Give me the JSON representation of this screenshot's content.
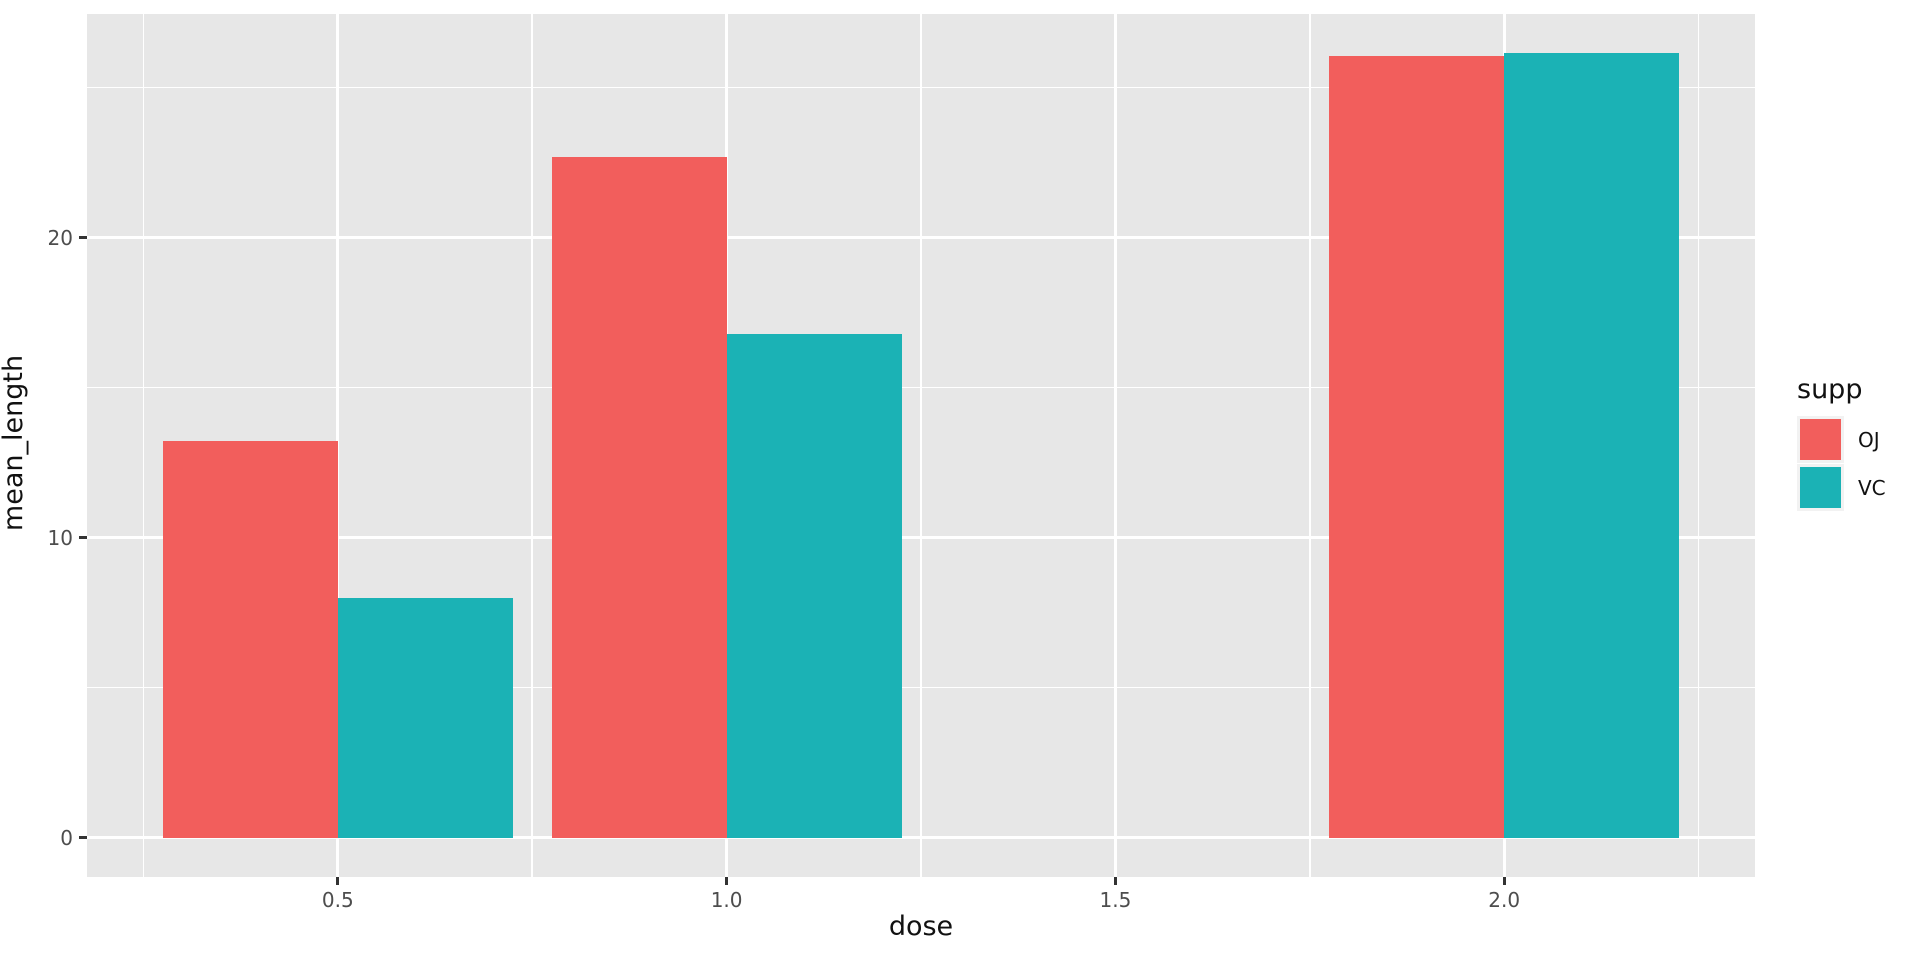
{
  "figure": {
    "theme": {
      "background": "#FFFFFF",
      "panel_bg": "#E7E7E7",
      "grid_color": "#FFFFFF",
      "tick_mark_color": "#333333",
      "tick_label_color": "#4D4D4D",
      "axis_title_color": "#111111",
      "legend_text_color": "#111111",
      "legend_key_bg": "#F2F2F2"
    }
  },
  "chart_data": {
    "type": "bar",
    "title": "",
    "xlabel": "dose",
    "ylabel": "mean_length",
    "categories": [
      0.5,
      1.0,
      2.0
    ],
    "series": [
      {
        "name": "OJ",
        "color": "#F25E5C",
        "values": [
          13.23,
          22.7,
          26.06
        ]
      },
      {
        "name": "VC",
        "color": "#1BB2B5",
        "values": [
          7.98,
          16.77,
          26.14
        ]
      }
    ],
    "bar_width": 0.225,
    "dodged": true,
    "x_domain": [
      0.1775,
      2.3225
    ],
    "y_domain": [
      -1.31,
      27.45
    ],
    "x_major_ticks": [
      0.5,
      1.0,
      1.5,
      2.0
    ],
    "x_tick_labels": [
      "0.5",
      "1.0",
      "1.5",
      "2.0"
    ],
    "x_minor_ticks": [
      0.25,
      0.75,
      1.25,
      1.75,
      2.25
    ],
    "y_major_ticks": [
      0,
      10,
      20
    ],
    "y_tick_labels": [
      "0",
      "10",
      "20"
    ],
    "y_minor_ticks": [
      5,
      15,
      25
    ],
    "grid": true,
    "legend": {
      "title": "supp",
      "position": "right",
      "entries": [
        {
          "label": "OJ",
          "color": "#F25E5C"
        },
        {
          "label": "VC",
          "color": "#1BB2B5"
        }
      ]
    }
  }
}
